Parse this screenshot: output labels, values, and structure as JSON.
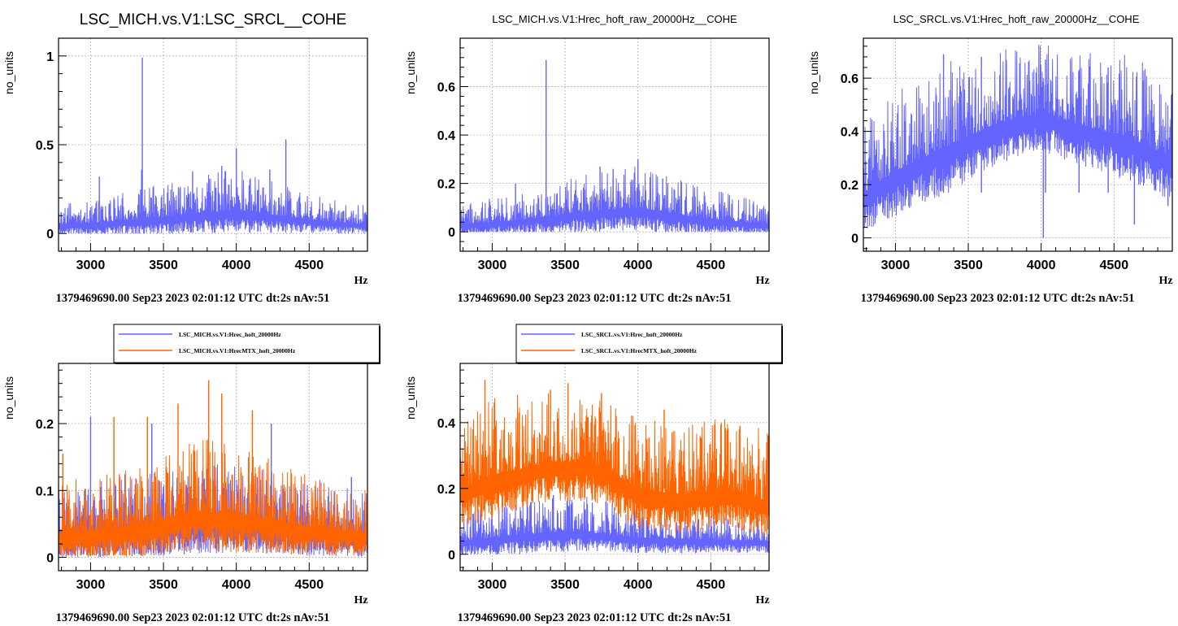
{
  "chart_data": [
    {
      "type": "line",
      "title": "LSC_MICH.vs.V1:LSC_SRCL__COHE",
      "xlabel": "Hz",
      "ylabel": "no_units",
      "footer": "1379469690.00 Sep23 2023 02:01:12 UTC dt:2s nAv:51",
      "xlim": [
        2780,
        4900
      ],
      "ylim": [
        -0.1,
        1.1
      ],
      "xticks": [
        3000,
        3500,
        4000,
        4500
      ],
      "yticks": [
        0,
        0.5,
        1
      ],
      "ytick_labels": [
        "0",
        "0.5",
        "1"
      ],
      "grid": true,
      "legend": null,
      "series": [
        {
          "color": "#6464ff",
          "envelope": [
            {
              "x": 2780,
              "base": 0.05,
              "spread": 0.05
            },
            {
              "x": 3000,
              "base": 0.06,
              "spread": 0.06
            },
            {
              "x": 3350,
              "base": 0.08,
              "spread": 0.08
            },
            {
              "x": 3700,
              "base": 0.11,
              "spread": 0.09
            },
            {
              "x": 4000,
              "base": 0.13,
              "spread": 0.11
            },
            {
              "x": 4300,
              "base": 0.1,
              "spread": 0.08
            },
            {
              "x": 4600,
              "base": 0.07,
              "spread": 0.06
            },
            {
              "x": 4900,
              "base": 0.05,
              "spread": 0.05
            }
          ],
          "spikes": [
            {
              "x": 3355,
              "y": 0.99
            },
            {
              "x": 4340,
              "y": 0.53
            },
            {
              "x": 4000,
              "y": 0.48
            },
            {
              "x": 3350,
              "y": 0.36
            },
            {
              "x": 3900,
              "y": 0.38
            },
            {
              "x": 3060,
              "y": 0.32
            },
            {
              "x": 3700,
              "y": 0.35
            },
            {
              "x": 4230,
              "y": 0.36
            }
          ],
          "floor": 0.0
        }
      ]
    },
    {
      "type": "line",
      "title": "LSC_MICH.vs.V1:Hrec_hoft_raw_20000Hz__COHE",
      "xlabel": "Hz",
      "ylabel": "no_units",
      "footer": "1379469690.00 Sep23 2023 02:01:12 UTC dt:2s nAv:51",
      "xlim": [
        2780,
        4900
      ],
      "ylim": [
        -0.08,
        0.8
      ],
      "xticks": [
        3000,
        3500,
        4000,
        4500
      ],
      "yticks": [
        0,
        0.2,
        0.4,
        0.6
      ],
      "ytick_labels": [
        "0",
        "0.2",
        "0.4",
        "0.6"
      ],
      "grid": true,
      "legend": null,
      "series": [
        {
          "color": "#6464ff",
          "envelope": [
            {
              "x": 2780,
              "base": 0.03,
              "spread": 0.04
            },
            {
              "x": 3200,
              "base": 0.05,
              "spread": 0.05
            },
            {
              "x": 3600,
              "base": 0.08,
              "spread": 0.07
            },
            {
              "x": 4000,
              "base": 0.1,
              "spread": 0.08
            },
            {
              "x": 4400,
              "base": 0.06,
              "spread": 0.06
            },
            {
              "x": 4900,
              "base": 0.03,
              "spread": 0.04
            }
          ],
          "spikes": [
            {
              "x": 3370,
              "y": 0.71
            },
            {
              "x": 4000,
              "y": 0.3
            },
            {
              "x": 3740,
              "y": 0.27
            },
            {
              "x": 3830,
              "y": 0.26
            },
            {
              "x": 3160,
              "y": 0.2
            },
            {
              "x": 4170,
              "y": 0.22
            }
          ],
          "floor": 0.0
        }
      ]
    },
    {
      "type": "line",
      "title": "LSC_SRCL.vs.V1:Hrec_hoft_raw_20000Hz__COHE",
      "xlabel": "Hz",
      "ylabel": "no_units",
      "footer": "1379469690.00 Sep23 2023 02:01:12 UTC dt:2s nAv:51",
      "xlim": [
        2780,
        4900
      ],
      "ylim": [
        -0.05,
        0.75
      ],
      "xticks": [
        3000,
        3500,
        4000,
        4500
      ],
      "yticks": [
        0,
        0.2,
        0.4,
        0.6
      ],
      "ytick_labels": [
        "0",
        "0.2",
        "0.4",
        "0.6"
      ],
      "grid": true,
      "legend": null,
      "series": [
        {
          "color": "#6464ff",
          "envelope": [
            {
              "x": 2780,
              "base": 0.17,
              "spread": 0.12
            },
            {
              "x": 3000,
              "base": 0.25,
              "spread": 0.14
            },
            {
              "x": 3300,
              "base": 0.33,
              "spread": 0.15
            },
            {
              "x": 3700,
              "base": 0.43,
              "spread": 0.13
            },
            {
              "x": 4000,
              "base": 0.47,
              "spread": 0.12
            },
            {
              "x": 4300,
              "base": 0.42,
              "spread": 0.13
            },
            {
              "x": 4600,
              "base": 0.38,
              "spread": 0.14
            },
            {
              "x": 4900,
              "base": 0.3,
              "spread": 0.14
            }
          ],
          "spikes": [
            {
              "x": 4030,
              "y": 0.67
            },
            {
              "x": 3590,
              "y": 0.68
            },
            {
              "x": 3330,
              "y": 0.69
            },
            {
              "x": 4260,
              "y": 0.63
            },
            {
              "x": 4460,
              "y": 0.64
            }
          ],
          "dips": [
            {
              "x": 4015,
              "y": 0.0
            },
            {
              "x": 4640,
              "y": 0.05
            },
            {
              "x": 4870,
              "y": 0.12
            }
          ],
          "floor": 0.02
        }
      ]
    },
    {
      "type": "line",
      "title": "",
      "xlabel": "Hz",
      "ylabel": "no_units",
      "footer": "1379469690.00 Sep23 2023 02:01:12 UTC dt:2s nAv:51",
      "xlim": [
        2780,
        4900
      ],
      "ylim": [
        -0.02,
        0.29
      ],
      "xticks": [
        3000,
        3500,
        4000,
        4500
      ],
      "yticks": [
        0,
        0.1,
        0.2
      ],
      "ytick_labels": [
        "0",
        "0.1",
        "0.2"
      ],
      "grid": true,
      "legend": "top-center",
      "series": [
        {
          "name": "LSC_MICH.vs.V1:Hrec_hoft_20000Hz",
          "color": "#6464ff",
          "envelope": [
            {
              "x": 2780,
              "base": 0.035,
              "spread": 0.03
            },
            {
              "x": 3500,
              "base": 0.05,
              "spread": 0.04
            },
            {
              "x": 4000,
              "base": 0.055,
              "spread": 0.04
            },
            {
              "x": 4900,
              "base": 0.035,
              "spread": 0.03
            }
          ],
          "spikes": [
            {
              "x": 3000,
              "y": 0.21
            },
            {
              "x": 3420,
              "y": 0.2
            },
            {
              "x": 4240,
              "y": 0.2
            },
            {
              "x": 4790,
              "y": 0.12
            }
          ],
          "floor": 0.0
        },
        {
          "name": "LSC_MICH.vs.V1:HrecMTX_hoft_20000Hz",
          "color": "#ff6400",
          "envelope": [
            {
              "x": 2780,
              "base": 0.035,
              "spread": 0.035
            },
            {
              "x": 3300,
              "base": 0.045,
              "spread": 0.04
            },
            {
              "x": 3750,
              "base": 0.07,
              "spread": 0.05
            },
            {
              "x": 4100,
              "base": 0.06,
              "spread": 0.045
            },
            {
              "x": 4500,
              "base": 0.045,
              "spread": 0.035
            },
            {
              "x": 4900,
              "base": 0.035,
              "spread": 0.03
            }
          ],
          "spikes": [
            {
              "x": 3810,
              "y": 0.265
            },
            {
              "x": 3900,
              "y": 0.245
            },
            {
              "x": 3600,
              "y": 0.23
            },
            {
              "x": 3390,
              "y": 0.21
            },
            {
              "x": 3160,
              "y": 0.21
            },
            {
              "x": 2810,
              "y": 0.155
            },
            {
              "x": 4110,
              "y": 0.22
            }
          ],
          "floor": 0.003
        }
      ]
    },
    {
      "type": "line",
      "title": "",
      "xlabel": "Hz",
      "ylabel": "no_units",
      "footer": "1379469690.00 Sep23 2023 02:01:12 UTC dt:2s nAv:51",
      "xlim": [
        2780,
        4900
      ],
      "ylim": [
        -0.05,
        0.58
      ],
      "xticks": [
        3000,
        3500,
        4000,
        4500
      ],
      "yticks": [
        0,
        0.2,
        0.4
      ],
      "ytick_labels": [
        "0",
        "0.2",
        "0.4"
      ],
      "grid": true,
      "legend": "top-center",
      "series": [
        {
          "name": "LSC_SRCL.vs.V1:Hrec_hoft_20000Hz",
          "color": "#6464ff",
          "envelope": [
            {
              "x": 2780,
              "base": 0.04,
              "spread": 0.04
            },
            {
              "x": 3200,
              "base": 0.06,
              "spread": 0.05
            },
            {
              "x": 3600,
              "base": 0.07,
              "spread": 0.05
            },
            {
              "x": 4000,
              "base": 0.05,
              "spread": 0.04
            },
            {
              "x": 4900,
              "base": 0.04,
              "spread": 0.03
            }
          ],
          "spikes": [
            {
              "x": 3240,
              "y": 0.19
            },
            {
              "x": 3420,
              "y": 0.18
            },
            {
              "x": 3780,
              "y": 0.16
            }
          ],
          "floor": 0.0
        },
        {
          "name": "LSC_SRCL.vs.V1:HrecMTX_hoft_20000Hz",
          "color": "#ff6400",
          "envelope": [
            {
              "x": 2780,
              "base": 0.2,
              "spread": 0.1
            },
            {
              "x": 3000,
              "base": 0.24,
              "spread": 0.11
            },
            {
              "x": 3400,
              "base": 0.28,
              "spread": 0.1
            },
            {
              "x": 3700,
              "base": 0.28,
              "spread": 0.1
            },
            {
              "x": 4000,
              "base": 0.2,
              "spread": 0.1
            },
            {
              "x": 4300,
              "base": 0.18,
              "spread": 0.1
            },
            {
              "x": 4600,
              "base": 0.2,
              "spread": 0.1
            },
            {
              "x": 4900,
              "base": 0.16,
              "spread": 0.1
            }
          ],
          "spikes": [
            {
              "x": 2950,
              "y": 0.53
            },
            {
              "x": 3520,
              "y": 0.52
            },
            {
              "x": 3400,
              "y": 0.5
            },
            {
              "x": 3750,
              "y": 0.49
            },
            {
              "x": 4180,
              "y": 0.44
            },
            {
              "x": 4700,
              "y": 0.39
            }
          ],
          "floor": 0.0
        }
      ]
    }
  ]
}
